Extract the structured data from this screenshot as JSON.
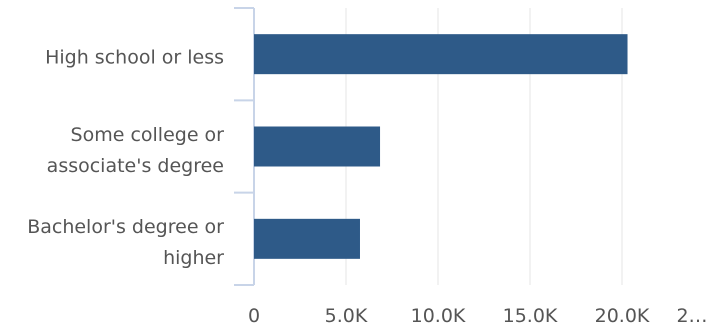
{
  "chart_data": {
    "type": "bar",
    "orientation": "horizontal",
    "categories": [
      "High school or less",
      "Some college or associate's degree",
      "Bachelor's degree or higher"
    ],
    "values": [
      20300,
      6850,
      5760
    ],
    "color": "#2e5a88",
    "xlim": [
      0,
      25000
    ],
    "xticks": [
      0,
      {
        "value": 5000,
        "label": "5.0K"
      },
      {
        "value": 10000,
        "label": "10.0K"
      },
      {
        "value": 15000,
        "label": "15.0K"
      },
      {
        "value": 20000,
        "label": "20.0K"
      },
      {
        "value": 25000,
        "label": "2…"
      }
    ],
    "grid": true
  }
}
